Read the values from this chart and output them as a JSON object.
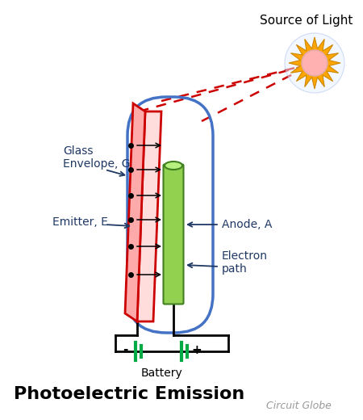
{
  "title": "Photoelectric Emission",
  "watermark": "Circuit Globe",
  "source_of_light_label": "Source of Light",
  "glass_envelope_label": "Glass\nEnvelope, G",
  "emitter_label": "Emitter, E",
  "anode_label": "Anode, A",
  "electron_path_label": "Electron\npath",
  "battery_label": "Battery",
  "bg_color": "#ffffff",
  "tube_color": "#4472c4",
  "emitter_plate_color": "#cc0000",
  "anode_color": "#92d050",
  "anode_top_color": "#b8f080",
  "anode_edge_color": "#408020",
  "battery_green": "#00aa44",
  "arrow_color": "#000000",
  "dashed_color": "#cc0000",
  "label_color": "#1f3864",
  "title_color": "#000000",
  "sun_orange": "#ffa500",
  "sun_pink": "#ffb0b0",
  "sun_ray_color": "#cc8800"
}
